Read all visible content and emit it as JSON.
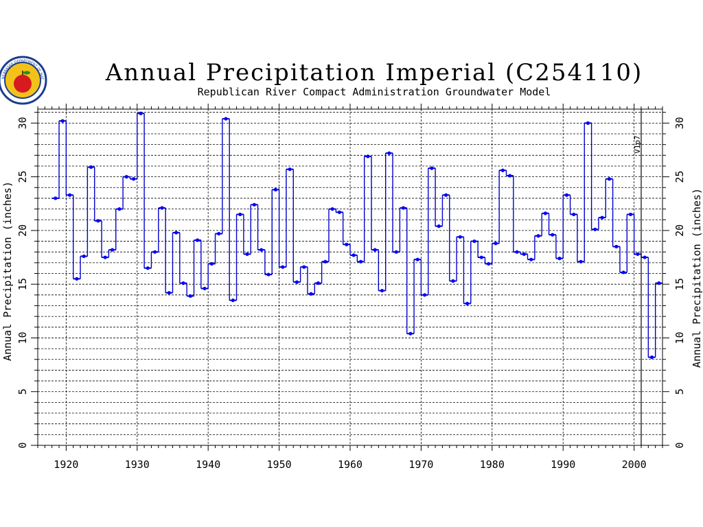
{
  "colors": {
    "series": "#0000cc",
    "marker": "#0000ff",
    "grid": "#000000",
    "background": "#ffffff",
    "logo_ring": "#1a3d8f",
    "logo_fill": "#f2c21b",
    "apple": "#d71920"
  },
  "logo": {
    "icon": "apple-seal-icon",
    "ring_text": "NEBRASKA DEPARTMENT OF NATURAL RESOURCES"
  },
  "chart_data": {
    "type": "line",
    "step": true,
    "title": "Annual Precipitation Imperial (C254110)",
    "subtitle": "Republican River Compact Administration Groundwater Model",
    "ylabel_left": "Annual Precipitation (inches)",
    "ylabel_right": "Annual Precipitation (inches)",
    "xlim": [
      1916,
      2004
    ],
    "ylim": [
      0,
      31.3
    ],
    "xticks": [
      1920,
      1930,
      1940,
      1950,
      1960,
      1970,
      1980,
      1990,
      2000
    ],
    "yticks": [
      0,
      5,
      10,
      15,
      20,
      25,
      30
    ],
    "y_minor_step": 1,
    "grid": true,
    "vline": {
      "x": 2001,
      "label": "V1p7"
    },
    "series": [
      {
        "x": [
          1918,
          1919,
          1920,
          1921,
          1922,
          1923,
          1924,
          1925,
          1926,
          1927,
          1928,
          1929,
          1930,
          1931,
          1932,
          1933,
          1934,
          1935,
          1936,
          1937,
          1938,
          1939,
          1940,
          1941,
          1942,
          1943,
          1944,
          1945,
          1946,
          1947,
          1948,
          1949,
          1950,
          1951,
          1952,
          1953,
          1954,
          1955,
          1956,
          1957,
          1958,
          1959,
          1960,
          1961,
          1962,
          1963,
          1964,
          1965,
          1966,
          1967,
          1968,
          1969,
          1970,
          1971,
          1972,
          1973,
          1974,
          1975,
          1976,
          1977,
          1978,
          1979,
          1980,
          1981,
          1982,
          1983,
          1984,
          1985,
          1986,
          1987,
          1988,
          1989,
          1990,
          1991,
          1992,
          1993,
          1994,
          1995,
          1996,
          1997,
          1998,
          1999,
          2000,
          2001,
          2002,
          2003
        ],
        "values": [
          23.0,
          30.2,
          23.3,
          15.5,
          17.6,
          25.9,
          20.9,
          17.5,
          18.2,
          22.0,
          25.0,
          24.8,
          30.9,
          16.5,
          18.0,
          22.1,
          14.2,
          19.8,
          15.1,
          13.9,
          19.1,
          14.6,
          16.9,
          19.7,
          30.4,
          13.5,
          21.5,
          17.8,
          22.4,
          18.2,
          15.9,
          23.8,
          16.6,
          25.7,
          15.2,
          16.6,
          14.1,
          15.1,
          17.1,
          22.0,
          21.7,
          18.7,
          17.7,
          17.1,
          26.9,
          18.2,
          14.4,
          27.2,
          18.0,
          22.1,
          10.4,
          17.3,
          14.0,
          25.8,
          20.4,
          23.3,
          15.3,
          19.4,
          13.2,
          19.0,
          17.5,
          16.9,
          18.8,
          25.6,
          25.1,
          18.0,
          17.8,
          17.3,
          19.5,
          21.6,
          19.6,
          17.4,
          23.3,
          21.5,
          17.1,
          30.0,
          20.1,
          21.2,
          24.8,
          18.5,
          16.1,
          21.5,
          17.8,
          17.5,
          8.2,
          15.1
        ]
      }
    ]
  }
}
